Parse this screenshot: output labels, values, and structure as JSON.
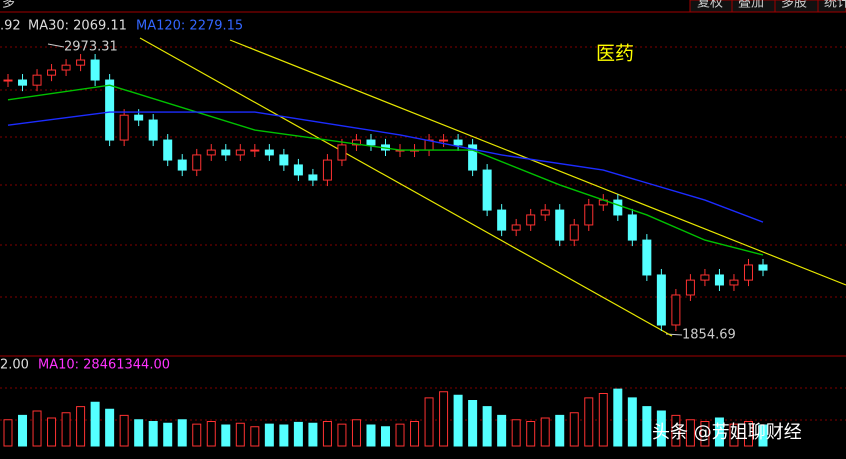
{
  "toolbar": {
    "left": "多",
    "buttons": [
      "复权",
      "叠加",
      "多股",
      "统计"
    ]
  },
  "price_panel": {
    "legend_prefix": ".92",
    "ma30_label": "MA30: 2069.11",
    "ma120_label": "MA120: 2279.15",
    "title": "医药",
    "high_label": "2973.31",
    "low_label": "1854.69",
    "ylim": [
      1765,
      3149
    ],
    "close": [
      2837,
      2817,
      2856,
      2876,
      2895,
      2915,
      2837,
      2603,
      2700,
      2681,
      2603,
      2525,
      2486,
      2545,
      2564,
      2545,
      2564,
      2564,
      2545,
      2506,
      2467,
      2447,
      2525,
      2584,
      2603,
      2584,
      2564,
      2564,
      2564,
      2603,
      2603,
      2584,
      2486,
      2330,
      2252,
      2272,
      2311,
      2330,
      2213,
      2272,
      2350,
      2369,
      2311,
      2213,
      2077,
      1882,
      1999,
      2057,
      2077,
      2038,
      2057,
      2116,
      2096
    ],
    "ma30": {
      "color": "#00c000",
      "x": [
        0,
        7,
        17,
        27,
        32,
        38,
        44,
        48,
        52
      ],
      "values": [
        2760,
        2817,
        2642,
        2564,
        2564,
        2428,
        2311,
        2213,
        2155
      ]
    },
    "ma120": {
      "color": "#1c2cff",
      "x": [
        0,
        7,
        17,
        27,
        34,
        41,
        48,
        52
      ],
      "values": [
        2661,
        2712,
        2712,
        2623,
        2545,
        2486,
        2369,
        2283
      ]
    }
  },
  "volume_panel": {
    "legend_prefix": "2.00",
    "ma10_label": "MA10: 28461344.00",
    "ylim": [
      0,
      80
    ],
    "values": [
      30,
      35,
      40,
      32,
      38,
      45,
      50,
      42,
      35,
      30,
      28,
      26,
      30,
      25,
      28,
      24,
      26,
      22,
      25,
      24,
      27,
      26,
      28,
      25,
      30,
      24,
      22,
      25,
      28,
      55,
      62,
      58,
      52,
      45,
      35,
      30,
      28,
      32,
      35,
      38,
      55,
      60,
      65,
      55,
      45,
      40,
      35,
      30,
      28,
      32,
      25,
      28,
      24
    ]
  },
  "watermark": "头条 @芳姐聊财经"
}
